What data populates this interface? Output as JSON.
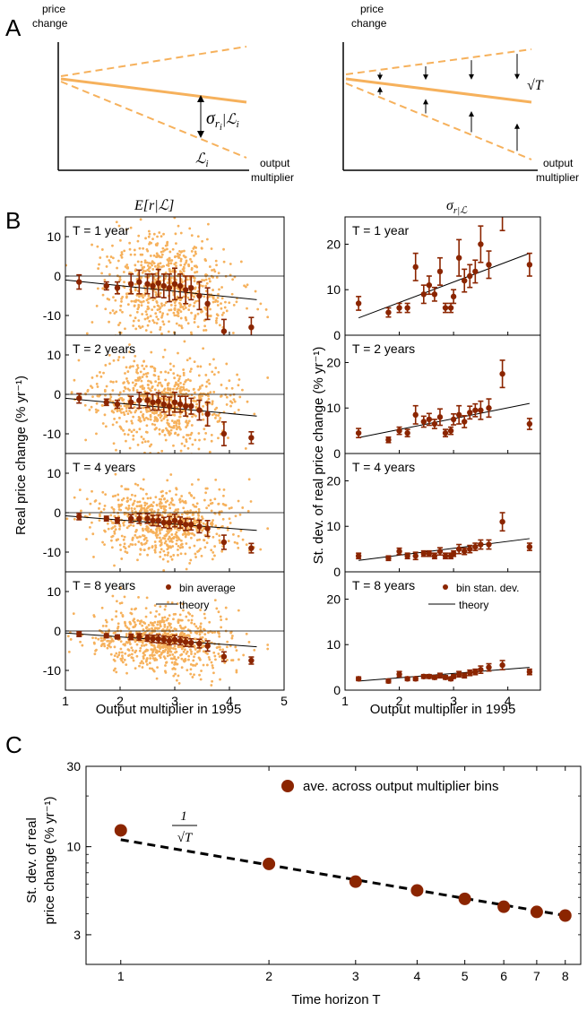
{
  "colors": {
    "light_orange": "#f6b15c",
    "orange": "#f4a460",
    "dark_red": "#8b2500",
    "black": "#000000"
  },
  "panel_a": {
    "letter": "A",
    "left": {
      "ylabel": "price\nchange",
      "xlabel": "output\nmultiplier",
      "sigma_label": "σ",
      "sigma_sub": "r",
      "sigma_subsub": "i",
      "sigma_cond": "|ℒ",
      "sigma_cond_sub": "i",
      "l_label": "ℒ",
      "l_sub": "i"
    },
    "right": {
      "ylabel": "price\nchange",
      "xlabel": "output\nmultiplier",
      "sqrt_label": "√T"
    }
  },
  "panel_b": {
    "letter": "B",
    "left_title": "E[r|ℒ]",
    "right_title": "σ",
    "right_title_sub": "r|ℒ",
    "left_ylabel": "Real price change (% yr⁻¹)",
    "right_ylabel": "St. dev. of real price change (% yr⁻¹)",
    "xlabel": "Output multiplier in 1995",
    "legend_left": {
      "points": "bin average",
      "line": "theory"
    },
    "legend_right": {
      "points": "bin stan. dev.",
      "line": "theory"
    }
  },
  "panel_c": {
    "letter": "C",
    "ylabel_line1": "St. dev. of real",
    "ylabel_line2": "price change (% yr⁻¹)",
    "xlabel": "Time horizon T",
    "legend": "ave. across output multiplier bins",
    "annotation_num": "1",
    "annotation_den": "√T"
  },
  "chart_data": [
    {
      "type": "line",
      "panel": "A-left",
      "xlabel": "output multiplier",
      "ylabel": "price change",
      "series": [
        {
          "name": "",
          "x": [
            0,
            1
          ],
          "y": [
            0,
            -0.3
          ]
        }
      ]
    },
    {
      "type": "scatter",
      "panel": "B-left",
      "xlabel": "Output multiplier in 1995",
      "ylabel": "Real price change (% yr⁻¹)",
      "xlim": [
        1,
        5
      ],
      "ylim": [
        -15,
        15
      ],
      "xticks": [
        1,
        2,
        3,
        4,
        5
      ],
      "yticks": [
        -10,
        0,
        10
      ],
      "subplots": [
        {
          "label": "T = 1 year",
          "bins_x": [
            1.25,
            1.75,
            1.95,
            2.2,
            2.35,
            2.5,
            2.6,
            2.7,
            2.8,
            2.9,
            3.0,
            3.1,
            3.2,
            3.3,
            3.45,
            3.6,
            3.9,
            4.4
          ],
          "bins_y": [
            -1.5,
            -2.5,
            -3.0,
            -2.0,
            -1.5,
            -2.0,
            -2.5,
            -1.8,
            -2.5,
            -3.0,
            -2.0,
            -2.5,
            -3.5,
            -3.0,
            -5.0,
            -7.0,
            -14.0,
            -13.0
          ],
          "bins_err": [
            1.8,
            1.0,
            1.5,
            2.5,
            3.0,
            2.5,
            3.0,
            3.5,
            3.0,
            3.5,
            4.0,
            3.0,
            3.5,
            3.0,
            3.5,
            4.0,
            3.0,
            2.5
          ],
          "theory": [
            [
              1.0,
              -1.0
            ],
            [
              4.5,
              -6.0
            ]
          ]
        },
        {
          "label": "T = 2 years",
          "bins_x": [
            1.25,
            1.75,
            1.95,
            2.2,
            2.35,
            2.5,
            2.6,
            2.7,
            2.8,
            2.9,
            3.0,
            3.1,
            3.2,
            3.3,
            3.45,
            3.6,
            3.9,
            4.4
          ],
          "bins_y": [
            -1.0,
            -2.0,
            -2.5,
            -2.0,
            -1.5,
            -1.5,
            -2.0,
            -1.8,
            -2.5,
            -3.0,
            -2.0,
            -2.5,
            -3.0,
            -3.0,
            -4.0,
            -5.0,
            -10.0,
            -11.0
          ],
          "bins_err": [
            1.2,
            0.8,
            1.0,
            1.5,
            2.0,
            1.8,
            2.0,
            2.2,
            2.0,
            2.3,
            2.5,
            2.0,
            2.5,
            2.0,
            2.5,
            3.0,
            3.0,
            1.5
          ],
          "theory": [
            [
              1.0,
              -1.0
            ],
            [
              4.5,
              -5.5
            ]
          ]
        },
        {
          "label": "T = 4 years",
          "bins_x": [
            1.25,
            1.75,
            1.95,
            2.2,
            2.35,
            2.5,
            2.6,
            2.7,
            2.8,
            2.9,
            3.0,
            3.1,
            3.2,
            3.3,
            3.45,
            3.6,
            3.9,
            4.4
          ],
          "bins_y": [
            -1.0,
            -1.5,
            -2.0,
            -1.5,
            -1.5,
            -1.5,
            -2.0,
            -2.0,
            -2.5,
            -2.5,
            -2.0,
            -2.5,
            -3.0,
            -3.0,
            -3.5,
            -4.0,
            -7.5,
            -9.0
          ],
          "bins_err": [
            0.8,
            0.6,
            0.7,
            1.0,
            1.2,
            1.2,
            1.3,
            1.4,
            1.3,
            1.5,
            1.6,
            1.4,
            1.5,
            1.4,
            1.6,
            2.0,
            1.8,
            1.2
          ],
          "theory": [
            [
              1.0,
              -0.8
            ],
            [
              4.5,
              -4.5
            ]
          ]
        },
        {
          "label": "T = 8 years",
          "bins_x": [
            1.25,
            1.75,
            1.95,
            2.2,
            2.35,
            2.5,
            2.6,
            2.7,
            2.8,
            2.9,
            3.0,
            3.1,
            3.2,
            3.3,
            3.45,
            3.6,
            3.9,
            4.4
          ],
          "bins_y": [
            -0.8,
            -1.2,
            -1.5,
            -1.5,
            -1.5,
            -1.8,
            -2.0,
            -2.0,
            -2.2,
            -2.5,
            -2.2,
            -2.5,
            -2.8,
            -3.0,
            -3.2,
            -3.8,
            -6.5,
            -7.5
          ],
          "bins_err": [
            0.6,
            0.5,
            0.5,
            0.7,
            0.8,
            0.8,
            0.9,
            1.0,
            0.9,
            1.0,
            1.1,
            1.0,
            1.1,
            1.0,
            1.1,
            1.3,
            1.2,
            0.9
          ],
          "theory": [
            [
              1.0,
              -0.5
            ],
            [
              4.5,
              -4.0
            ]
          ]
        }
      ]
    },
    {
      "type": "scatter",
      "panel": "B-right",
      "xlabel": "Output multiplier in 1995",
      "ylabel": "St. dev. of real price change (% yr⁻¹)",
      "xlim": [
        1,
        4.6
      ],
      "ylim": [
        0,
        26
      ],
      "xticks": [
        1,
        2,
        3,
        4
      ],
      "yticks": [
        0,
        10,
        20
      ],
      "subplots": [
        {
          "label": "T = 1 year",
          "bins_x": [
            1.25,
            1.8,
            2.0,
            2.15,
            2.3,
            2.45,
            2.55,
            2.65,
            2.75,
            2.85,
            2.95,
            3.0,
            3.1,
            3.2,
            3.3,
            3.4,
            3.5,
            3.65,
            3.9,
            4.4
          ],
          "bins_y": [
            7.0,
            5.0,
            6.0,
            6.0,
            15.0,
            9.0,
            11.0,
            9.0,
            14.0,
            6.0,
            6.0,
            8.5,
            17.0,
            12.0,
            13.0,
            14.0,
            20.0,
            15.5,
            27.0,
            15.5
          ],
          "bins_err": [
            1.5,
            1.0,
            1.0,
            1.0,
            3.0,
            2.0,
            2.0,
            1.5,
            3.0,
            1.0,
            1.0,
            1.5,
            4.0,
            2.5,
            2.5,
            2.5,
            4.0,
            3.0,
            4.0,
            2.5
          ],
          "theory": [
            [
              1.25,
              3.8
            ],
            [
              4.4,
              18.0
            ]
          ]
        },
        {
          "label": "T = 2 years",
          "bins_x": [
            1.25,
            1.8,
            2.0,
            2.15,
            2.3,
            2.45,
            2.55,
            2.65,
            2.75,
            2.85,
            2.95,
            3.0,
            3.1,
            3.2,
            3.3,
            3.4,
            3.5,
            3.65,
            3.9,
            4.4
          ],
          "bins_y": [
            4.5,
            3.0,
            5.0,
            4.5,
            8.5,
            7.0,
            7.5,
            6.5,
            8.0,
            4.5,
            5.0,
            7.5,
            8.5,
            7.0,
            9.0,
            9.5,
            9.5,
            10.0,
            17.5,
            6.5
          ],
          "bins_err": [
            1.0,
            0.6,
            0.8,
            0.8,
            2.0,
            1.2,
            1.3,
            1.0,
            1.8,
            0.8,
            0.8,
            1.2,
            2.0,
            1.3,
            1.4,
            1.4,
            2.0,
            2.0,
            3.0,
            1.2
          ],
          "theory": [
            [
              1.25,
              3.5
            ],
            [
              4.4,
              11.0
            ]
          ]
        },
        {
          "label": "T = 4 years",
          "bins_x": [
            1.25,
            1.8,
            2.0,
            2.15,
            2.3,
            2.45,
            2.55,
            2.65,
            2.75,
            2.85,
            2.95,
            3.0,
            3.1,
            3.2,
            3.3,
            3.4,
            3.5,
            3.65,
            3.9,
            4.4
          ],
          "bins_y": [
            3.5,
            3.0,
            4.5,
            3.5,
            3.5,
            4.0,
            4.0,
            3.5,
            4.5,
            3.5,
            3.5,
            4.0,
            5.0,
            4.5,
            5.0,
            5.5,
            6.0,
            6.0,
            11.0,
            5.5
          ],
          "bins_err": [
            0.6,
            0.5,
            0.7,
            0.6,
            0.8,
            0.6,
            0.6,
            0.6,
            0.8,
            0.6,
            0.6,
            0.6,
            1.0,
            0.7,
            0.8,
            0.8,
            1.0,
            1.0,
            2.0,
            0.8
          ],
          "theory": [
            [
              1.25,
              2.5
            ],
            [
              4.4,
              7.3
            ]
          ]
        },
        {
          "label": "T = 8 years",
          "bins_x": [
            1.25,
            1.8,
            2.0,
            2.15,
            2.3,
            2.45,
            2.55,
            2.65,
            2.75,
            2.85,
            2.95,
            3.0,
            3.1,
            3.2,
            3.3,
            3.4,
            3.5,
            3.65,
            3.9,
            4.4
          ],
          "bins_y": [
            2.5,
            2.0,
            3.5,
            2.5,
            2.5,
            3.0,
            3.0,
            2.8,
            3.2,
            2.8,
            2.5,
            3.0,
            3.5,
            3.2,
            3.8,
            4.0,
            4.5,
            5.0,
            5.5,
            4.0
          ],
          "bins_err": [
            0.4,
            0.4,
            0.6,
            0.4,
            0.4,
            0.4,
            0.4,
            0.4,
            0.5,
            0.4,
            0.4,
            0.4,
            0.6,
            0.5,
            0.6,
            0.6,
            0.8,
            0.8,
            1.0,
            0.6
          ],
          "theory": [
            [
              1.25,
              2.0
            ],
            [
              4.4,
              5.0
            ]
          ]
        }
      ]
    },
    {
      "type": "scatter",
      "panel": "C",
      "xlabel": "Time horizon T",
      "ylabel": "St. dev. of real price change (% yr⁻¹)",
      "xscale": "log",
      "yscale": "log",
      "xlim": [
        0.85,
        8.6
      ],
      "ylim": [
        2,
        30
      ],
      "xticks": [
        1,
        2,
        3,
        4,
        5,
        6,
        7,
        8
      ],
      "yticks": [
        3,
        10,
        30
      ],
      "series": [
        {
          "name": "ave. across output multiplier bins",
          "x": [
            1,
            2,
            3,
            4,
            5,
            6,
            7,
            8
          ],
          "y": [
            12.5,
            7.9,
            6.2,
            5.5,
            4.9,
            4.4,
            4.1,
            3.9
          ]
        }
      ],
      "theory_1_over_sqrtT": [
        [
          1,
          11.0
        ],
        [
          8,
          3.9
        ]
      ]
    }
  ]
}
